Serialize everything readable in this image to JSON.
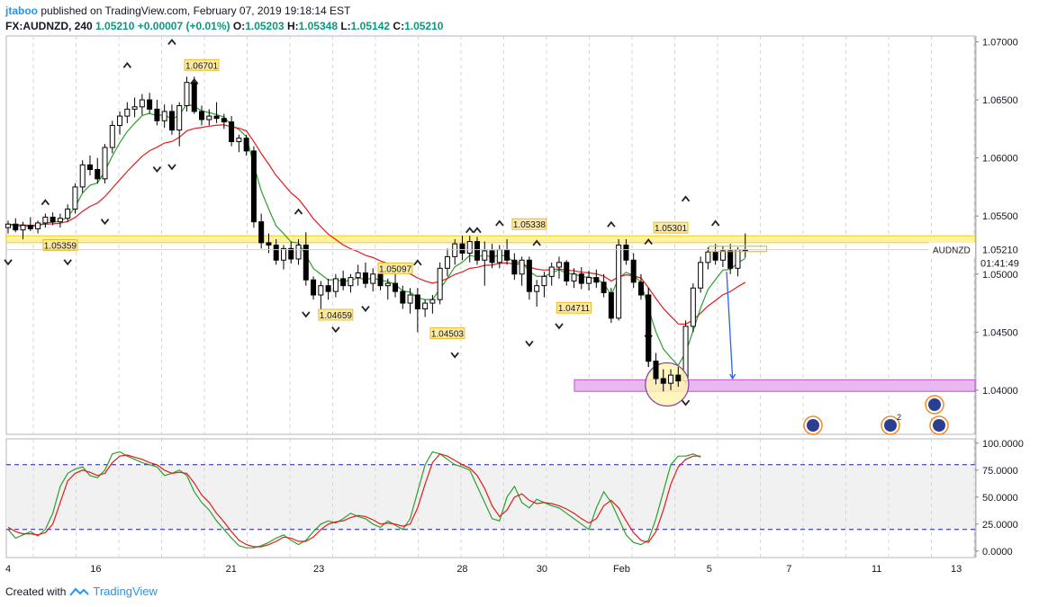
{
  "header": {
    "user": "jtaboo",
    "published": "published on TradingView.com, February 07, 2019 19:18:14 EST",
    "symbol": "FX:AUDNZD, 240",
    "last": "1.05210",
    "change": "+0.00007 (+0.01%)",
    "o_label": "O:",
    "o_val": "1.05203",
    "h_label": "H:",
    "h_val": "1.05348",
    "l_label": "L:",
    "l_val": "1.05142",
    "c_label": "C:",
    "c_val": "1.05210"
  },
  "footer": {
    "created_with": "Created with",
    "brand": "TradingView"
  },
  "colors": {
    "up": "#2b2b2b",
    "down": "#000000",
    "ema_fast": "#2ca02c",
    "ema_slow": "#e41a1c",
    "resistance_zone": "#fff3a0",
    "support_zone": "#e6b8ee",
    "stoch_k": "#2ca02c",
    "stoch_d": "#e41a1c",
    "price_tag": "#fde9a6"
  },
  "chart_data": {
    "type": "candlestick",
    "symbol": "AUDNZD",
    "timeframe": "240",
    "price_axis": {
      "ticks": [
        "1.07000",
        "1.06500",
        "1.06000",
        "1.05500",
        "1.05000",
        "1.04500",
        "1.04000"
      ],
      "ylim": [
        1.0362,
        1.0705
      ]
    },
    "x_ticks": [
      "4",
      "16",
      "21",
      "23",
      "28",
      "30",
      "Feb",
      "5",
      "7",
      "11",
      "13"
    ],
    "current_price_label": "AUDNZD",
    "current_price": "1.05210",
    "countdown": "01:41:49",
    "price_annotations": [
      "1.06701",
      "1.05359",
      "1.05097",
      "1.04659",
      "1.04503",
      "1.05338",
      "1.04711",
      "1.05301"
    ],
    "zones": [
      {
        "name": "resistance",
        "from": 1.0527,
        "to": 1.0533
      },
      {
        "name": "support",
        "from": 1.0399,
        "to": 1.0409
      }
    ],
    "ohlc": [
      [
        1.054,
        1.0546,
        1.0535,
        1.0543
      ],
      [
        1.0543,
        1.0548,
        1.0536,
        1.0538
      ],
      [
        1.0538,
        1.0545,
        1.053,
        1.0542
      ],
      [
        1.0542,
        1.0549,
        1.0537,
        1.0539
      ],
      [
        1.0539,
        1.0546,
        1.0535,
        1.0544
      ],
      [
        1.0544,
        1.0552,
        1.054,
        1.0549
      ],
      [
        1.0549,
        1.0553,
        1.0542,
        1.0545
      ],
      [
        1.0545,
        1.0552,
        1.054,
        1.0548
      ],
      [
        1.0548,
        1.056,
        1.0545,
        1.0556
      ],
      [
        1.0556,
        1.0578,
        1.0552,
        1.0575
      ],
      [
        1.0575,
        1.0598,
        1.057,
        1.0594
      ],
      [
        1.0594,
        1.0602,
        1.0585,
        1.059
      ],
      [
        1.059,
        1.06,
        1.0578,
        1.0582
      ],
      [
        1.0582,
        1.0612,
        1.0578,
        1.0609
      ],
      [
        1.0609,
        1.0632,
        1.0604,
        1.0628
      ],
      [
        1.0628,
        1.064,
        1.062,
        1.0636
      ],
      [
        1.0636,
        1.0648,
        1.063,
        1.0642
      ],
      [
        1.0642,
        1.0652,
        1.0635,
        1.0644
      ],
      [
        1.0644,
        1.0655,
        1.0637,
        1.065
      ],
      [
        1.065,
        1.0656,
        1.0638,
        1.0642
      ],
      [
        1.0642,
        1.065,
        1.0628,
        1.0632
      ],
      [
        1.0632,
        1.0646,
        1.0626,
        1.064
      ],
      [
        1.064,
        1.0646,
        1.062,
        1.0624
      ],
      [
        1.0624,
        1.0648,
        1.061,
        1.0645
      ],
      [
        1.0645,
        1.067,
        1.064,
        1.0665
      ],
      [
        1.0665,
        1.067,
        1.0638,
        1.064
      ],
      [
        1.064,
        1.0645,
        1.0628,
        1.0633
      ],
      [
        1.0633,
        1.0642,
        1.0628,
        1.0636
      ],
      [
        1.0636,
        1.0648,
        1.063,
        1.0634
      ],
      [
        1.0634,
        1.0638,
        1.0625,
        1.0631
      ],
      [
        1.0631,
        1.0636,
        1.061,
        1.0614
      ],
      [
        1.0614,
        1.062,
        1.0605,
        1.0617
      ],
      [
        1.0617,
        1.062,
        1.0602,
        1.0606
      ],
      [
        1.0606,
        1.061,
        1.054,
        1.0545
      ],
      [
        1.0545,
        1.0552,
        1.0522,
        1.0527
      ],
      [
        1.0527,
        1.0535,
        1.0518,
        1.0525
      ],
      [
        1.0525,
        1.053,
        1.0508,
        1.0512
      ],
      [
        1.0512,
        1.0525,
        1.0504,
        1.0522
      ],
      [
        1.0522,
        1.0528,
        1.0509,
        1.0513
      ],
      [
        1.0513,
        1.053,
        1.0508,
        1.0525
      ],
      [
        1.0525,
        1.0536,
        1.049,
        1.0495
      ],
      [
        1.0495,
        1.0498,
        1.0478,
        1.0482
      ],
      [
        1.0482,
        1.0494,
        1.0466,
        1.049
      ],
      [
        1.049,
        1.0496,
        1.0478,
        1.0485
      ],
      [
        1.0485,
        1.05,
        1.048,
        1.0496
      ],
      [
        1.0496,
        1.0503,
        1.0486,
        1.049
      ],
      [
        1.049,
        1.05,
        1.0484,
        1.0497
      ],
      [
        1.0497,
        1.0508,
        1.049,
        1.0501
      ],
      [
        1.0501,
        1.051,
        1.0488,
        1.0492
      ],
      [
        1.0492,
        1.0505,
        1.0485,
        1.05
      ],
      [
        1.05,
        1.0505,
        1.0486,
        1.049
      ],
      [
        1.049,
        1.0496,
        1.0478,
        1.0492
      ],
      [
        1.0492,
        1.05,
        1.048,
        1.0485
      ],
      [
        1.0485,
        1.049,
        1.047,
        1.0475
      ],
      [
        1.0475,
        1.0488,
        1.0466,
        1.0482
      ],
      [
        1.0482,
        1.0488,
        1.045,
        1.047
      ],
      [
        1.047,
        1.0478,
        1.0463,
        1.0475
      ],
      [
        1.0475,
        1.0482,
        1.0466,
        1.0478
      ],
      [
        1.0478,
        1.051,
        1.0474,
        1.0505
      ],
      [
        1.0505,
        1.0522,
        1.0498,
        1.0515
      ],
      [
        1.0515,
        1.053,
        1.0508,
        1.0526
      ],
      [
        1.0526,
        1.0533,
        1.0512,
        1.0518
      ],
      [
        1.0518,
        1.0533,
        1.051,
        1.0528
      ],
      [
        1.0528,
        1.0532,
        1.0508,
        1.0512
      ],
      [
        1.0512,
        1.0528,
        1.049,
        1.052
      ],
      [
        1.052,
        1.0526,
        1.0505,
        1.051
      ],
      [
        1.051,
        1.0525,
        1.0505,
        1.0521
      ],
      [
        1.0521,
        1.053,
        1.0508,
        1.0512
      ],
      [
        1.0512,
        1.0518,
        1.0495,
        1.05
      ],
      [
        1.05,
        1.0515,
        1.049,
        1.0512
      ],
      [
        1.0512,
        1.0515,
        1.0478,
        1.0485
      ],
      [
        1.0485,
        1.0495,
        1.0472,
        1.049
      ],
      [
        1.049,
        1.0502,
        1.048,
        1.0498
      ],
      [
        1.0498,
        1.051,
        1.049,
        1.0506
      ],
      [
        1.0506,
        1.0515,
        1.0496,
        1.051
      ],
      [
        1.051,
        1.0512,
        1.049,
        1.0494
      ],
      [
        1.0494,
        1.0505,
        1.0488,
        1.05
      ],
      [
        1.05,
        1.0506,
        1.0487,
        1.0492
      ],
      [
        1.0492,
        1.0503,
        1.0486,
        1.0497
      ],
      [
        1.0497,
        1.0504,
        1.0488,
        1.0493
      ],
      [
        1.0493,
        1.05,
        1.048,
        1.0484
      ],
      [
        1.0484,
        1.0488,
        1.0458,
        1.0462
      ],
      [
        1.0462,
        1.053,
        1.046,
        1.0525
      ],
      [
        1.0525,
        1.053,
        1.0508,
        1.0512
      ],
      [
        1.0512,
        1.0518,
        1.0488,
        1.0493
      ],
      [
        1.0493,
        1.05,
        1.0478,
        1.0482
      ],
      [
        1.0482,
        1.0488,
        1.042,
        1.0425
      ],
      [
        1.0425,
        1.0432,
        1.0405,
        1.041
      ],
      [
        1.041,
        1.0418,
        1.0399,
        1.0406
      ],
      [
        1.0406,
        1.0418,
        1.04,
        1.0413
      ],
      [
        1.0413,
        1.042,
        1.0403,
        1.0408
      ],
      [
        1.0408,
        1.046,
        1.0405,
        1.0455
      ],
      [
        1.0455,
        1.0492,
        1.045,
        1.0488
      ],
      [
        1.0488,
        1.0515,
        1.0484,
        1.051
      ],
      [
        1.051,
        1.0523,
        1.0504,
        1.0519
      ],
      [
        1.0519,
        1.0526,
        1.0508,
        1.0512
      ],
      [
        1.0512,
        1.0524,
        1.0506,
        1.052
      ],
      [
        1.052,
        1.0526,
        1.05,
        1.0505
      ],
      [
        1.0505,
        1.0523,
        1.0498,
        1.0521
      ],
      [
        1.0521,
        1.0535,
        1.0514,
        1.0521
      ]
    ],
    "stochastic": {
      "axis_ticks": [
        "100.0000",
        "75.0000",
        "50.0000",
        "25.0000",
        "0.0000"
      ],
      "ylim": [
        -6,
        104
      ],
      "levels": [
        80,
        20
      ],
      "k": [
        20,
        12,
        15,
        18,
        14,
        20,
        35,
        60,
        72,
        76,
        78,
        70,
        68,
        75,
        90,
        92,
        88,
        85,
        82,
        80,
        78,
        70,
        72,
        75,
        70,
        55,
        45,
        38,
        28,
        20,
        12,
        5,
        3,
        3,
        5,
        8,
        12,
        15,
        10,
        6,
        10,
        18,
        25,
        28,
        26,
        30,
        35,
        32,
        30,
        25,
        22,
        28,
        24,
        20,
        30,
        55,
        80,
        92,
        90,
        85,
        80,
        78,
        75,
        60,
        45,
        30,
        28,
        50,
        60,
        45,
        40,
        48,
        45,
        42,
        40,
        35,
        30,
        25,
        20,
        40,
        55,
        45,
        30,
        15,
        8,
        6,
        10,
        30,
        55,
        80,
        88,
        88,
        90,
        87
      ],
      "d": [
        22,
        18,
        16,
        16,
        15,
        17,
        25,
        45,
        65,
        72,
        75,
        73,
        70,
        72,
        82,
        88,
        89,
        87,
        85,
        82,
        80,
        75,
        72,
        73,
        72,
        63,
        52,
        45,
        35,
        27,
        18,
        10,
        6,
        4,
        4,
        6,
        9,
        13,
        12,
        9,
        9,
        13,
        20,
        25,
        27,
        28,
        31,
        33,
        32,
        29,
        25,
        26,
        25,
        23,
        25,
        40,
        62,
        82,
        90,
        88,
        84,
        80,
        77,
        70,
        58,
        42,
        32,
        38,
        50,
        53,
        47,
        44,
        45,
        44,
        42,
        39,
        35,
        30,
        26,
        30,
        42,
        47,
        40,
        28,
        17,
        10,
        8,
        18,
        38,
        62,
        78,
        85,
        88,
        88
      ]
    },
    "markers_up": [
      [
        5,
        1.0562
      ],
      [
        16,
        1.068
      ],
      [
        22,
        1.07
      ],
      [
        25,
        1.0666
      ],
      [
        39,
        1.0554
      ],
      [
        55,
        1.051
      ],
      [
        62,
        1.0538
      ],
      [
        63,
        1.0538
      ],
      [
        66,
        1.0544
      ],
      [
        71,
        1.0527
      ],
      [
        81,
        1.0543
      ],
      [
        86,
        1.0528
      ],
      [
        91,
        1.0565
      ],
      [
        95,
        1.0544
      ]
    ],
    "markers_down": [
      [
        0,
        1.051
      ],
      [
        8,
        1.051
      ],
      [
        13,
        1.0545
      ],
      [
        20,
        1.059
      ],
      [
        22,
        1.0592
      ],
      [
        40,
        1.0465
      ],
      [
        44,
        1.0452
      ],
      [
        48,
        1.047
      ],
      [
        60,
        1.043
      ],
      [
        70,
        1.044
      ],
      [
        74,
        1.0455
      ],
      [
        86,
        1.0445
      ],
      [
        91,
        1.0389
      ]
    ],
    "event_markers": [
      {
        "badge": ""
      },
      {
        "badge": "2"
      },
      {
        "badge": ""
      },
      {
        "badge": ""
      }
    ]
  }
}
